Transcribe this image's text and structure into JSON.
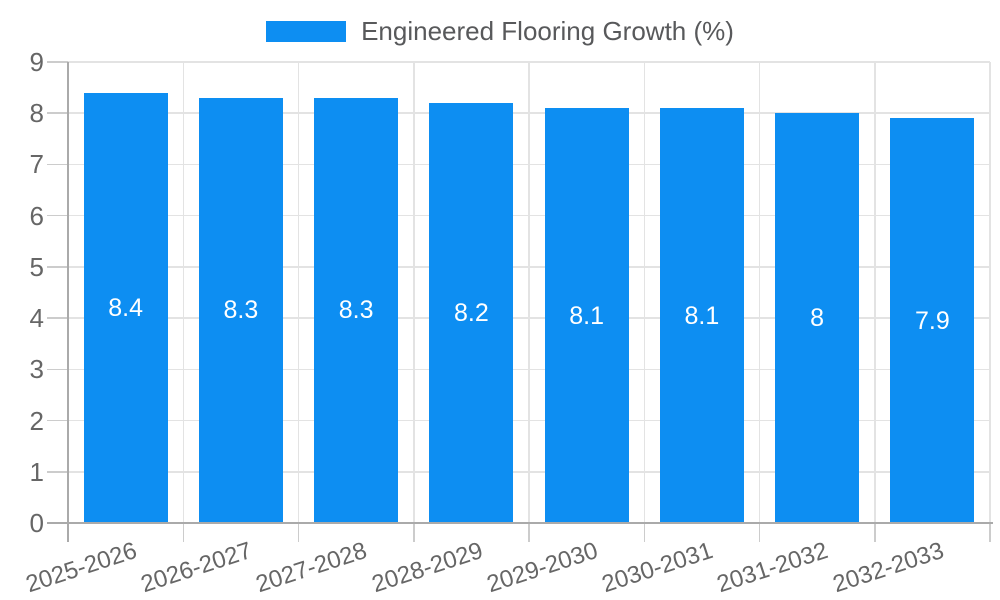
{
  "chart_data": {
    "type": "bar",
    "title": "",
    "legend_label": "Engineered Flooring Growth (%)",
    "legend_position": "top",
    "categories": [
      "2025-2026",
      "2026-2027",
      "2027-2028",
      "2028-2029",
      "2029-2030",
      "2030-2031",
      "2031-2032",
      "2032-2033"
    ],
    "values": [
      8.4,
      8.3,
      8.3,
      8.2,
      8.1,
      8.1,
      8,
      7.9
    ],
    "bar_value_labels": [
      "8.4",
      "8.3",
      "8.3",
      "8.2",
      "8.1",
      "8.1",
      "8",
      "7.9"
    ],
    "xlabel": "",
    "ylabel": "",
    "ylim": [
      0,
      9
    ],
    "yticks": [
      0,
      1,
      2,
      3,
      4,
      5,
      6,
      7,
      8,
      9
    ],
    "grid": true,
    "bar_color": "#0d8ef2",
    "bar_label_color": "#ffffff",
    "axis_text_color": "#666666",
    "legend_text_color": "#58595b",
    "gridline_color": "#e3e3e3",
    "tick_color": "#cccccc",
    "axis_line_color": "#aaaaaa"
  }
}
